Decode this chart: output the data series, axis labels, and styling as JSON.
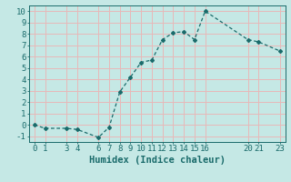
{
  "x": [
    0,
    1,
    3,
    4,
    6,
    7,
    8,
    9,
    10,
    11,
    12,
    13,
    14,
    15,
    16,
    20,
    21,
    23
  ],
  "y": [
    0.0,
    -0.3,
    -0.3,
    -0.4,
    -1.1,
    -0.2,
    2.9,
    4.2,
    5.5,
    5.7,
    7.5,
    8.1,
    8.2,
    7.5,
    10.0,
    7.5,
    7.3,
    6.5
  ],
  "line_color": "#1a6b6b",
  "marker": "D",
  "marker_size": 2.0,
  "bg_color": "#c5e8e5",
  "grid_color": "#e8b8b8",
  "xlabel": "Humidex (Indice chaleur)",
  "ylabel": "",
  "xlim": [
    -0.5,
    23.5
  ],
  "ylim": [
    -1.5,
    10.5
  ],
  "xticks": [
    0,
    1,
    3,
    4,
    6,
    7,
    8,
    9,
    10,
    11,
    12,
    13,
    14,
    15,
    16,
    20,
    21,
    23
  ],
  "yticks": [
    -1,
    0,
    1,
    2,
    3,
    4,
    5,
    6,
    7,
    8,
    9,
    10
  ],
  "xlabel_fontsize": 7.5,
  "tick_fontsize": 6.5
}
